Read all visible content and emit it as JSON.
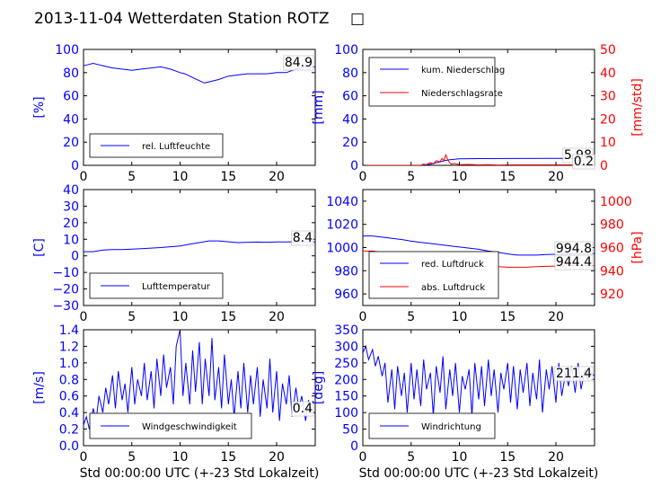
{
  "title": "2013-11-04 Wetterdaten Station ROTZ",
  "title_glyph": "□",
  "xlabel": "Std 00:00:00 UTC (+-23 Std Lokalzeit)",
  "colors": {
    "left_axis": "#0000ff",
    "right_axis": "#ff0000",
    "line_blue": "#0000ff",
    "line_red": "#ff0000"
  },
  "chart_data": [
    {
      "id": "humidity",
      "type": "line",
      "ylabel": "[%]",
      "xlim": [
        0,
        24
      ],
      "ylim": [
        0,
        100
      ],
      "xticks": [
        0,
        5,
        10,
        15,
        20
      ],
      "yticks": [
        0,
        20,
        40,
        60,
        80,
        100
      ],
      "legend": {
        "placement": "lower-left",
        "entries": [
          "rel. Luftfeuchte"
        ]
      },
      "annotations": [
        "84.9"
      ],
      "series": [
        {
          "name": "rel. Luftfeuchte",
          "axis": "left",
          "color": "#0000ff",
          "x": [
            0,
            0.5,
            1,
            1.5,
            2,
            3,
            4,
            5,
            6,
            7,
            8,
            9,
            10,
            10.5,
            11,
            11.5,
            12,
            12.5,
            13,
            14,
            15,
            16,
            17,
            18,
            19,
            20,
            21,
            22,
            23,
            24
          ],
          "y": [
            86,
            87,
            88,
            87,
            86,
            84,
            83,
            82,
            83,
            84,
            85,
            83,
            80,
            79,
            77,
            75,
            73,
            71,
            72,
            74,
            77,
            78,
            79,
            79,
            79,
            80,
            80,
            83,
            85,
            85
          ]
        }
      ]
    },
    {
      "id": "precipitation",
      "type": "line",
      "ylabel": "[mm]",
      "ylabel_right": "[mm/std]",
      "xlim": [
        0,
        24
      ],
      "ylim": [
        0,
        100
      ],
      "ylim_right": [
        0,
        50
      ],
      "xticks": [
        0,
        5,
        10,
        15,
        20
      ],
      "yticks": [
        0,
        20,
        40,
        60,
        80,
        100
      ],
      "yticks_right": [
        0,
        10,
        20,
        30,
        40,
        50
      ],
      "legend": {
        "placement": "top-left",
        "entries": [
          "kum. Niederschlag",
          "Niederschlagsrate"
        ]
      },
      "annotations": [
        "5.98",
        "0.2"
      ],
      "series": [
        {
          "name": "kum. Niederschlag",
          "axis": "left",
          "color": "#0000ff",
          "x": [
            0,
            6,
            6.5,
            7,
            7.5,
            8,
            8.5,
            9,
            9.5,
            10,
            12,
            15,
            20,
            24
          ],
          "y": [
            0,
            0,
            0.3,
            1,
            2,
            3,
            4,
            4.8,
            5.3,
            5.6,
            5.8,
            5.9,
            5.98,
            5.98
          ]
        },
        {
          "name": "Niederschlagsrate",
          "axis": "right",
          "color": "#ff0000",
          "x": [
            0,
            6,
            6.3,
            6.6,
            7,
            7.3,
            7.6,
            8,
            8.2,
            8.4,
            8.6,
            8.8,
            9,
            9.2,
            9.5,
            10,
            11,
            12,
            13,
            14,
            15,
            20,
            24
          ],
          "y": [
            0,
            0,
            0.5,
            0.3,
            1.2,
            0.6,
            2,
            1.5,
            3,
            2,
            4.5,
            2.5,
            1,
            0.5,
            0.8,
            0.3,
            0.4,
            0.2,
            0.3,
            0.1,
            0.2,
            0.2,
            0.2
          ]
        }
      ]
    },
    {
      "id": "temperature",
      "type": "line",
      "ylabel": "[C]",
      "xlim": [
        0,
        24
      ],
      "ylim": [
        -30,
        40
      ],
      "xticks": [
        0,
        5,
        10,
        15,
        20
      ],
      "yticks": [
        -30,
        -20,
        -10,
        0,
        10,
        20,
        30,
        40
      ],
      "legend": {
        "placement": "lower-left",
        "entries": [
          "Lufttemperatur"
        ]
      },
      "annotations": [
        "8.4"
      ],
      "series": [
        {
          "name": "Lufttemperatur",
          "axis": "left",
          "color": "#0000ff",
          "x": [
            0,
            1,
            2,
            3,
            4,
            5,
            6,
            7,
            8,
            9,
            10,
            11,
            12,
            13,
            14,
            15,
            16,
            17,
            18,
            19,
            20,
            21,
            22,
            23,
            24
          ],
          "y": [
            2.5,
            2.5,
            3.5,
            3.8,
            3.8,
            4,
            4.3,
            4.7,
            5,
            5.5,
            6,
            7,
            8,
            9,
            9,
            8.5,
            8,
            8.2,
            8.3,
            8.2,
            8.4,
            8.4,
            8.5,
            8.4,
            8.4
          ]
        }
      ]
    },
    {
      "id": "pressure",
      "type": "line",
      "ylabel": "",
      "ylabel_right": "[hPa]",
      "xlim": [
        0,
        24
      ],
      "ylim": [
        950,
        1050
      ],
      "ylim_right": [
        910,
        1010
      ],
      "xticks": [
        0,
        5,
        10,
        15,
        20
      ],
      "yticks": [
        960,
        980,
        1000,
        1020,
        1040
      ],
      "yticks_right": [
        920,
        940,
        960,
        980,
        1000
      ],
      "legend": {
        "placement": "lower-left",
        "entries": [
          "red. Luftdruck",
          "abs. Luftdruck"
        ]
      },
      "annotations": [
        "994.8",
        "944.4"
      ],
      "series": [
        {
          "name": "red. Luftdruck",
          "axis": "left",
          "color": "#0000ff",
          "x": [
            0,
            1,
            2,
            3,
            4,
            5,
            6,
            7,
            8,
            9,
            10,
            11,
            12,
            13,
            14,
            15,
            16,
            17,
            18,
            19,
            20,
            21,
            22,
            23,
            24
          ],
          "y": [
            1010,
            1010,
            1009,
            1008,
            1007,
            1005.5,
            1004.5,
            1003.5,
            1002.5,
            1001.5,
            1000.5,
            999.5,
            998.5,
            997,
            996,
            994.5,
            993.5,
            993.5,
            993.5,
            994,
            994.2,
            994.5,
            994.8,
            994.8,
            994.8
          ]
        },
        {
          "name": "abs. Luftdruck",
          "axis": "right",
          "color": "#ff0000",
          "x": [
            0,
            1,
            2,
            3,
            4,
            5,
            6,
            7,
            8,
            9,
            10,
            11,
            12,
            13,
            14,
            15,
            16,
            17,
            18,
            19,
            20,
            21,
            22,
            23,
            24
          ],
          "y": [
            957,
            957,
            956,
            955.5,
            954,
            952.5,
            951.5,
            950.5,
            949.5,
            948.5,
            947.5,
            946.5,
            945.5,
            944.5,
            943.5,
            943,
            943,
            943,
            943.5,
            943.8,
            944,
            944.2,
            944.4,
            944.4,
            944.4
          ]
        }
      ]
    },
    {
      "id": "windspeed",
      "type": "line",
      "ylabel": "[m/s]",
      "xlim": [
        0,
        24
      ],
      "ylim": [
        0,
        1.4
      ],
      "xticks": [
        0,
        5,
        10,
        15,
        20
      ],
      "yticks": [
        0.0,
        0.2,
        0.4,
        0.6,
        0.8,
        1.0,
        1.2,
        1.4
      ],
      "legend": {
        "placement": "lower-center",
        "entries": [
          "Windgeschwindigkeit"
        ]
      },
      "annotations": [
        "0.4"
      ],
      "series": [
        {
          "name": "Windgeschwindigkeit",
          "axis": "left",
          "color": "#0000ff",
          "x": [
            0,
            0.3,
            0.6,
            1,
            1.3,
            1.6,
            2,
            2.3,
            2.6,
            3,
            3.3,
            3.6,
            4,
            4.3,
            4.6,
            5,
            5.3,
            5.6,
            6,
            6.3,
            6.6,
            7,
            7.3,
            7.6,
            8,
            8.3,
            8.6,
            9,
            9.3,
            9.6,
            10,
            10.3,
            10.6,
            11,
            11.3,
            11.6,
            12,
            12.3,
            12.6,
            13,
            13.3,
            13.6,
            14,
            14.3,
            14.6,
            15,
            15.3,
            15.6,
            16,
            16.3,
            16.6,
            17,
            17.3,
            17.6,
            18,
            18.3,
            18.6,
            19,
            19.3,
            19.6,
            20,
            20.3,
            20.6,
            21,
            21.3,
            21.6,
            22,
            22.3,
            22.6,
            23,
            23.3,
            23.6,
            24
          ],
          "y": [
            0.25,
            0.35,
            0.2,
            0.45,
            0.3,
            0.6,
            0.4,
            0.7,
            0.5,
            0.85,
            0.45,
            0.9,
            0.55,
            0.75,
            0.4,
            0.95,
            0.5,
            0.8,
            0.6,
            1.0,
            0.55,
            0.9,
            0.45,
            1.05,
            0.6,
            1.1,
            0.7,
            0.95,
            0.5,
            1.2,
            1.4,
            0.6,
            1.0,
            0.5,
            1.15,
            0.65,
            1.25,
            0.5,
            1.05,
            0.6,
            1.3,
            0.55,
            0.95,
            0.45,
            1.1,
            0.5,
            0.8,
            0.35,
            0.9,
            0.45,
            1.0,
            0.4,
            0.85,
            0.5,
            0.95,
            0.35,
            0.8,
            0.45,
            1.05,
            0.4,
            0.9,
            0.3,
            0.75,
            0.5,
            0.85,
            0.35,
            0.7,
            0.45,
            0.6,
            0.3,
            0.55,
            0.4,
            0.4
          ]
        }
      ]
    },
    {
      "id": "winddirection",
      "type": "line",
      "ylabel": "[deg]",
      "xlim": [
        0,
        24
      ],
      "ylim": [
        0,
        350
      ],
      "xticks": [
        0,
        5,
        10,
        15,
        20
      ],
      "yticks": [
        0,
        50,
        100,
        150,
        200,
        250,
        300,
        350
      ],
      "legend": {
        "placement": "lower-left",
        "entries": [
          "Windrichtung"
        ]
      },
      "annotations": [
        "211.4"
      ],
      "series": [
        {
          "name": "Windrichtung",
          "axis": "left",
          "color": "#0000ff",
          "x": [
            0,
            0.3,
            0.6,
            1,
            1.3,
            1.6,
            2,
            2.3,
            2.6,
            3,
            3.3,
            3.6,
            4,
            4.3,
            4.6,
            5,
            5.3,
            5.6,
            6,
            6.3,
            6.6,
            7,
            7.3,
            7.6,
            8,
            8.3,
            8.6,
            9,
            9.3,
            9.6,
            10,
            10.3,
            10.6,
            11,
            11.3,
            11.6,
            12,
            12.3,
            12.6,
            13,
            13.3,
            13.6,
            14,
            14.3,
            14.6,
            15,
            15.3,
            15.6,
            16,
            16.3,
            16.6,
            17,
            17.3,
            17.6,
            18,
            18.3,
            18.6,
            19,
            19.3,
            19.6,
            20,
            20.3,
            20.6,
            21,
            21.3,
            21.6,
            22,
            22.3,
            22.6,
            23,
            23.3,
            23.6,
            24
          ],
          "y": [
            280,
            300,
            260,
            290,
            240,
            270,
            210,
            250,
            130,
            230,
            110,
            240,
            150,
            220,
            100,
            250,
            140,
            230,
            120,
            260,
            170,
            220,
            90,
            240,
            160,
            270,
            110,
            230,
            150,
            250,
            100,
            210,
            170,
            230,
            90,
            250,
            140,
            240,
            120,
            260,
            150,
            230,
            100,
            220,
            170,
            250,
            130,
            240,
            110,
            230,
            160,
            250,
            120,
            220,
            140,
            260,
            100,
            230,
            170,
            240,
            130,
            250,
            150,
            220,
            180,
            240,
            160,
            250,
            170,
            230,
            200,
            220,
            211
          ]
        }
      ]
    }
  ]
}
